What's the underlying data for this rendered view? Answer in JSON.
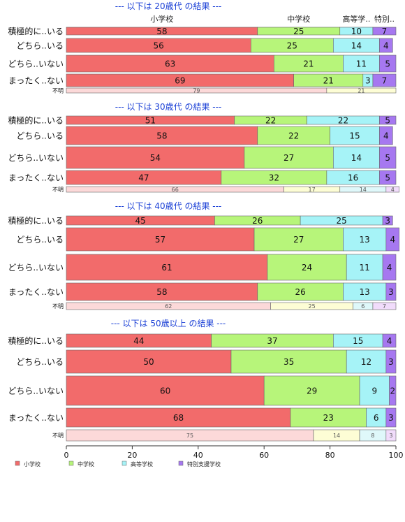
{
  "chart_data": {
    "type": "bar",
    "stacked": true,
    "orientation": "horizontal",
    "xlim": [
      0,
      100
    ],
    "x_ticks": [
      0,
      20,
      40,
      60,
      80,
      100
    ],
    "series_names": [
      "小学校",
      "中学校",
      "高等学校",
      "特別支援学校"
    ],
    "series_colors": [
      "#f26b6b",
      "#b7f57a",
      "#a6f3f7",
      "#a678f0"
    ],
    "unknown_colors": [
      "#fcd9d9",
      "#fdfdd5",
      "#dff8fa",
      "#f1dcfb"
    ],
    "header_labels": [
      "小学校",
      "中学校",
      "高等学..",
      "特別.."
    ],
    "legend": {
      "position": "bottom",
      "labels": [
        "小学校",
        "中学校",
        "高等学校",
        "特別支援学校"
      ]
    },
    "panels": [
      {
        "title": "--- 以下は 20歳代 の結果 ---",
        "categories": [
          "積極的に..いる",
          "どちら..いる",
          "どちら..いない",
          "まったく..ない",
          "不明"
        ],
        "values": [
          [
            58,
            25,
            10,
            7
          ],
          [
            56,
            25,
            14,
            4
          ],
          [
            63,
            21,
            11,
            5
          ],
          [
            69,
            21,
            3,
            7
          ],
          [
            79,
            21,
            0,
            0
          ]
        ]
      },
      {
        "title": "--- 以下は 30歳代 の結果 ---",
        "categories": [
          "積極的に..いる",
          "どちら..いる",
          "どちら..いない",
          "まったく..ない",
          "不明"
        ],
        "values": [
          [
            51,
            22,
            22,
            5
          ],
          [
            58,
            22,
            15,
            4
          ],
          [
            54,
            27,
            14,
            5
          ],
          [
            47,
            32,
            16,
            5
          ],
          [
            66,
            17,
            14,
            4
          ]
        ]
      },
      {
        "title": "--- 以下は 40歳代 の結果 ---",
        "categories": [
          "積極的に..いる",
          "どちら..いる",
          "どちら..いない",
          "まったく..ない",
          "不明"
        ],
        "values": [
          [
            45,
            26,
            25,
            3
          ],
          [
            57,
            27,
            13,
            4
          ],
          [
            61,
            24,
            11,
            4
          ],
          [
            58,
            26,
            13,
            3
          ],
          [
            62,
            25,
            6,
            7
          ]
        ]
      },
      {
        "title": "--- 以下は 50歳以上 の結果 ---",
        "categories": [
          "積極的に..いる",
          "どちら..いる",
          "どちら..いない",
          "まったく..ない",
          "不明"
        ],
        "values": [
          [
            44,
            37,
            15,
            4
          ],
          [
            50,
            35,
            12,
            3
          ],
          [
            60,
            29,
            9,
            2
          ],
          [
            68,
            23,
            6,
            3
          ],
          [
            75,
            14,
            8,
            3
          ]
        ]
      }
    ]
  }
}
